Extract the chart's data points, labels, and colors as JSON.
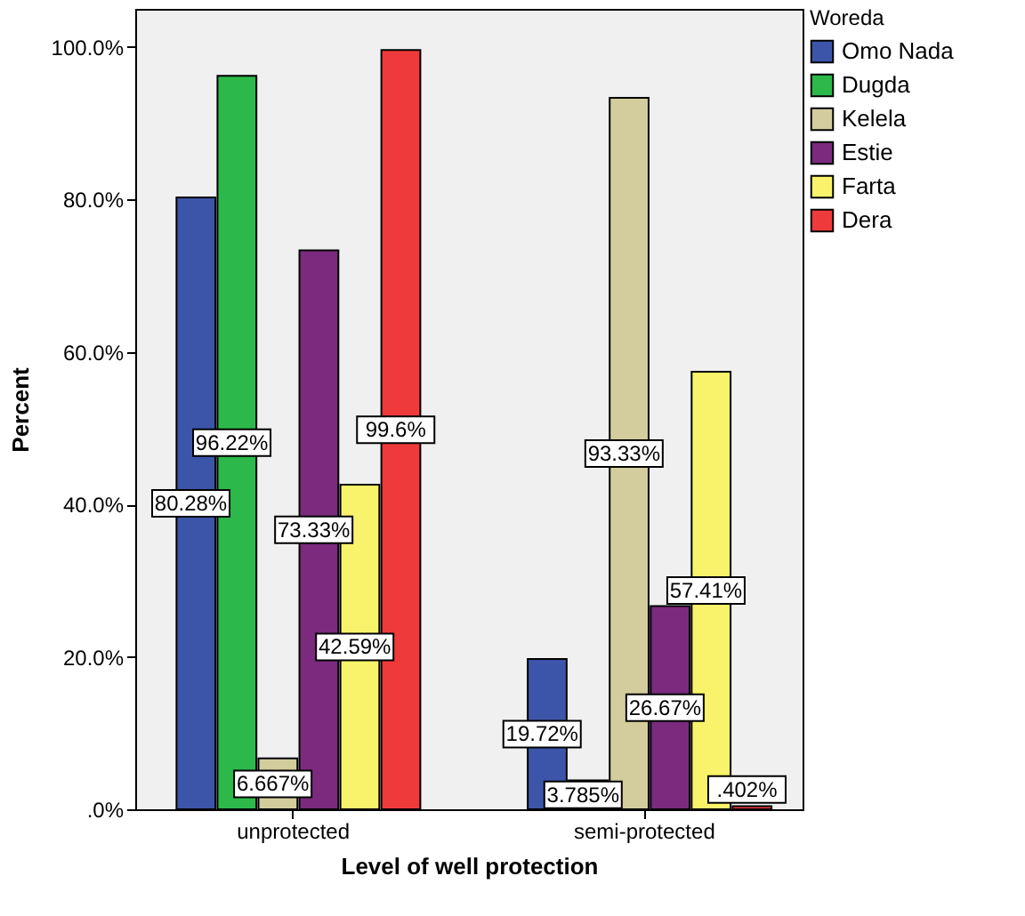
{
  "chart_data": {
    "type": "bar",
    "xlabel": "Level of well protection",
    "ylabel": "Percent",
    "legend_title": "Woreda",
    "categories": [
      "unprotected",
      "semi-protected"
    ],
    "series": [
      {
        "name": "Omo Nada",
        "color": "#3c55a8",
        "values": [
          80.28,
          19.72
        ],
        "value_labels": [
          "80.28%",
          "19.72%"
        ]
      },
      {
        "name": "Dugda",
        "color": "#2db84a",
        "values": [
          96.22,
          3.785
        ],
        "value_labels": [
          "96.22%",
          "3.785%"
        ]
      },
      {
        "name": "Kelela",
        "color": "#d3cc9c",
        "values": [
          6.667,
          93.33
        ],
        "value_labels": [
          "6.667%",
          "93.33%"
        ]
      },
      {
        "name": "Estie",
        "color": "#7b2a7e",
        "values": [
          73.33,
          26.67
        ],
        "value_labels": [
          "73.33%",
          "26.67%"
        ]
      },
      {
        "name": "Farta",
        "color": "#f8f36a",
        "values": [
          42.59,
          57.41
        ],
        "value_labels": [
          "42.59%",
          "57.41%"
        ]
      },
      {
        "name": "Dera",
        "color": "#ef3a3c",
        "values": [
          99.6,
          0.402
        ],
        "value_labels": [
          "99.6%",
          ".402%"
        ]
      }
    ],
    "ylim": [
      0,
      105
    ],
    "yticks": [
      {
        "value": 0,
        "label": ".0%"
      },
      {
        "value": 20,
        "label": "20.0%"
      },
      {
        "value": 40,
        "label": "40.0%"
      },
      {
        "value": 60,
        "label": "60.0%"
      },
      {
        "value": 80,
        "label": "80.0%"
      },
      {
        "value": 100,
        "label": "100.0%"
      }
    ],
    "grid": false,
    "legend": "top right"
  }
}
